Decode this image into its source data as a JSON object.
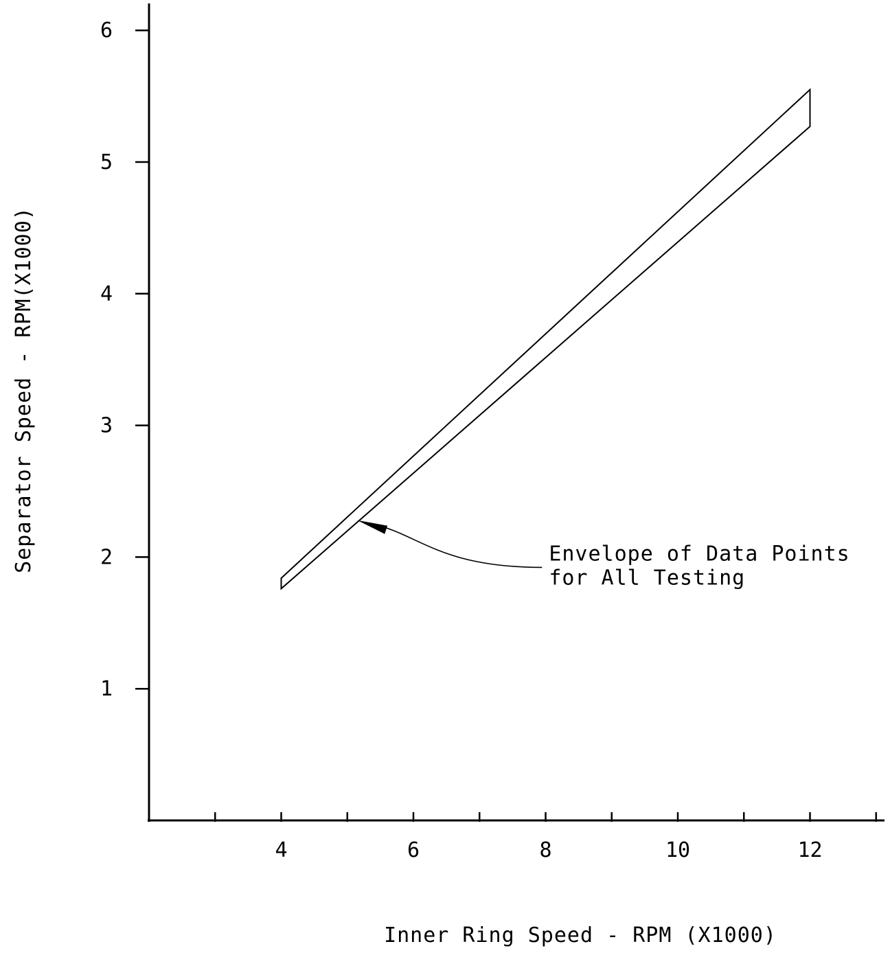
{
  "chart_data": {
    "type": "area",
    "title": "",
    "xlabel": "Inner Ring Speed - RPM (X1000)",
    "ylabel": "Separator Speed -   RPM(X1000)",
    "xlim": [
      2,
      13
    ],
    "ylim": [
      0,
      6.2
    ],
    "x_ticks": [
      3,
      4,
      5,
      6,
      7,
      8,
      9,
      10,
      11,
      12,
      13
    ],
    "x_tick_labels": [
      {
        "value": 4,
        "label": "4"
      },
      {
        "value": 6,
        "label": "6"
      },
      {
        "value": 8,
        "label": "8"
      },
      {
        "value": 10,
        "label": "10"
      },
      {
        "value": 12,
        "label": "12"
      }
    ],
    "y_ticks": [
      1,
      2,
      3,
      4,
      5,
      6
    ],
    "y_tick_labels": [
      {
        "value": 1,
        "label": "1"
      },
      {
        "value": 2,
        "label": "2"
      },
      {
        "value": 3,
        "label": "3"
      },
      {
        "value": 4,
        "label": "4"
      },
      {
        "value": 5,
        "label": "5"
      },
      {
        "value": 6,
        "label": "6"
      }
    ],
    "grid": false,
    "series": [
      {
        "x": [
          4,
          12
        ],
        "upper": [
          1.84,
          5.55
        ],
        "lower": [
          1.76,
          5.27
        ]
      }
    ],
    "annotation": {
      "lines": [
        "Envelope of Data Points",
        "for All Testing"
      ],
      "points_to": {
        "x": 5.15,
        "y": 2.28
      },
      "text_at": {
        "x": 8.05,
        "y": 2.0
      }
    },
    "colors": {
      "line": "#000000",
      "background": "#ffffff"
    }
  }
}
